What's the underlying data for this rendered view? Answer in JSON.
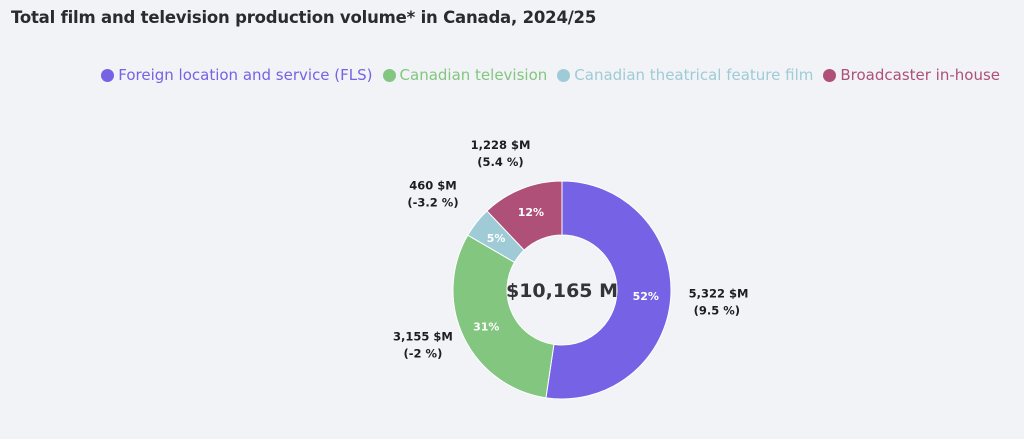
{
  "chart_data": {
    "type": "pie",
    "donut": true,
    "title": "Total film and television production volume* in Canada, 2024/25",
    "center_label": "$10,165 M",
    "legend_position": "top-right",
    "series": [
      {
        "name": "Foreign location and service (FLS)",
        "value": 5322,
        "percent_label": "52%",
        "value_label": "5,322 $M",
        "change_label": "(9.5 %)",
        "color": "#7562e4"
      },
      {
        "name": "Canadian television",
        "value": 3155,
        "percent_label": "31%",
        "value_label": "3,155 $M",
        "change_label": "(-2 %)",
        "color": "#82c67f"
      },
      {
        "name": "Canadian theatrical feature film",
        "value": 460,
        "percent_label": "5%",
        "value_label": "460 $M",
        "change_label": "(-3.2 %)",
        "color": "#9ecbd6"
      },
      {
        "name": "Broadcaster in-house",
        "value": 1228,
        "percent_label": "12%",
        "value_label": "1,228 $M",
        "change_label": "(5.4 %)",
        "color": "#ae5078"
      }
    ]
  }
}
